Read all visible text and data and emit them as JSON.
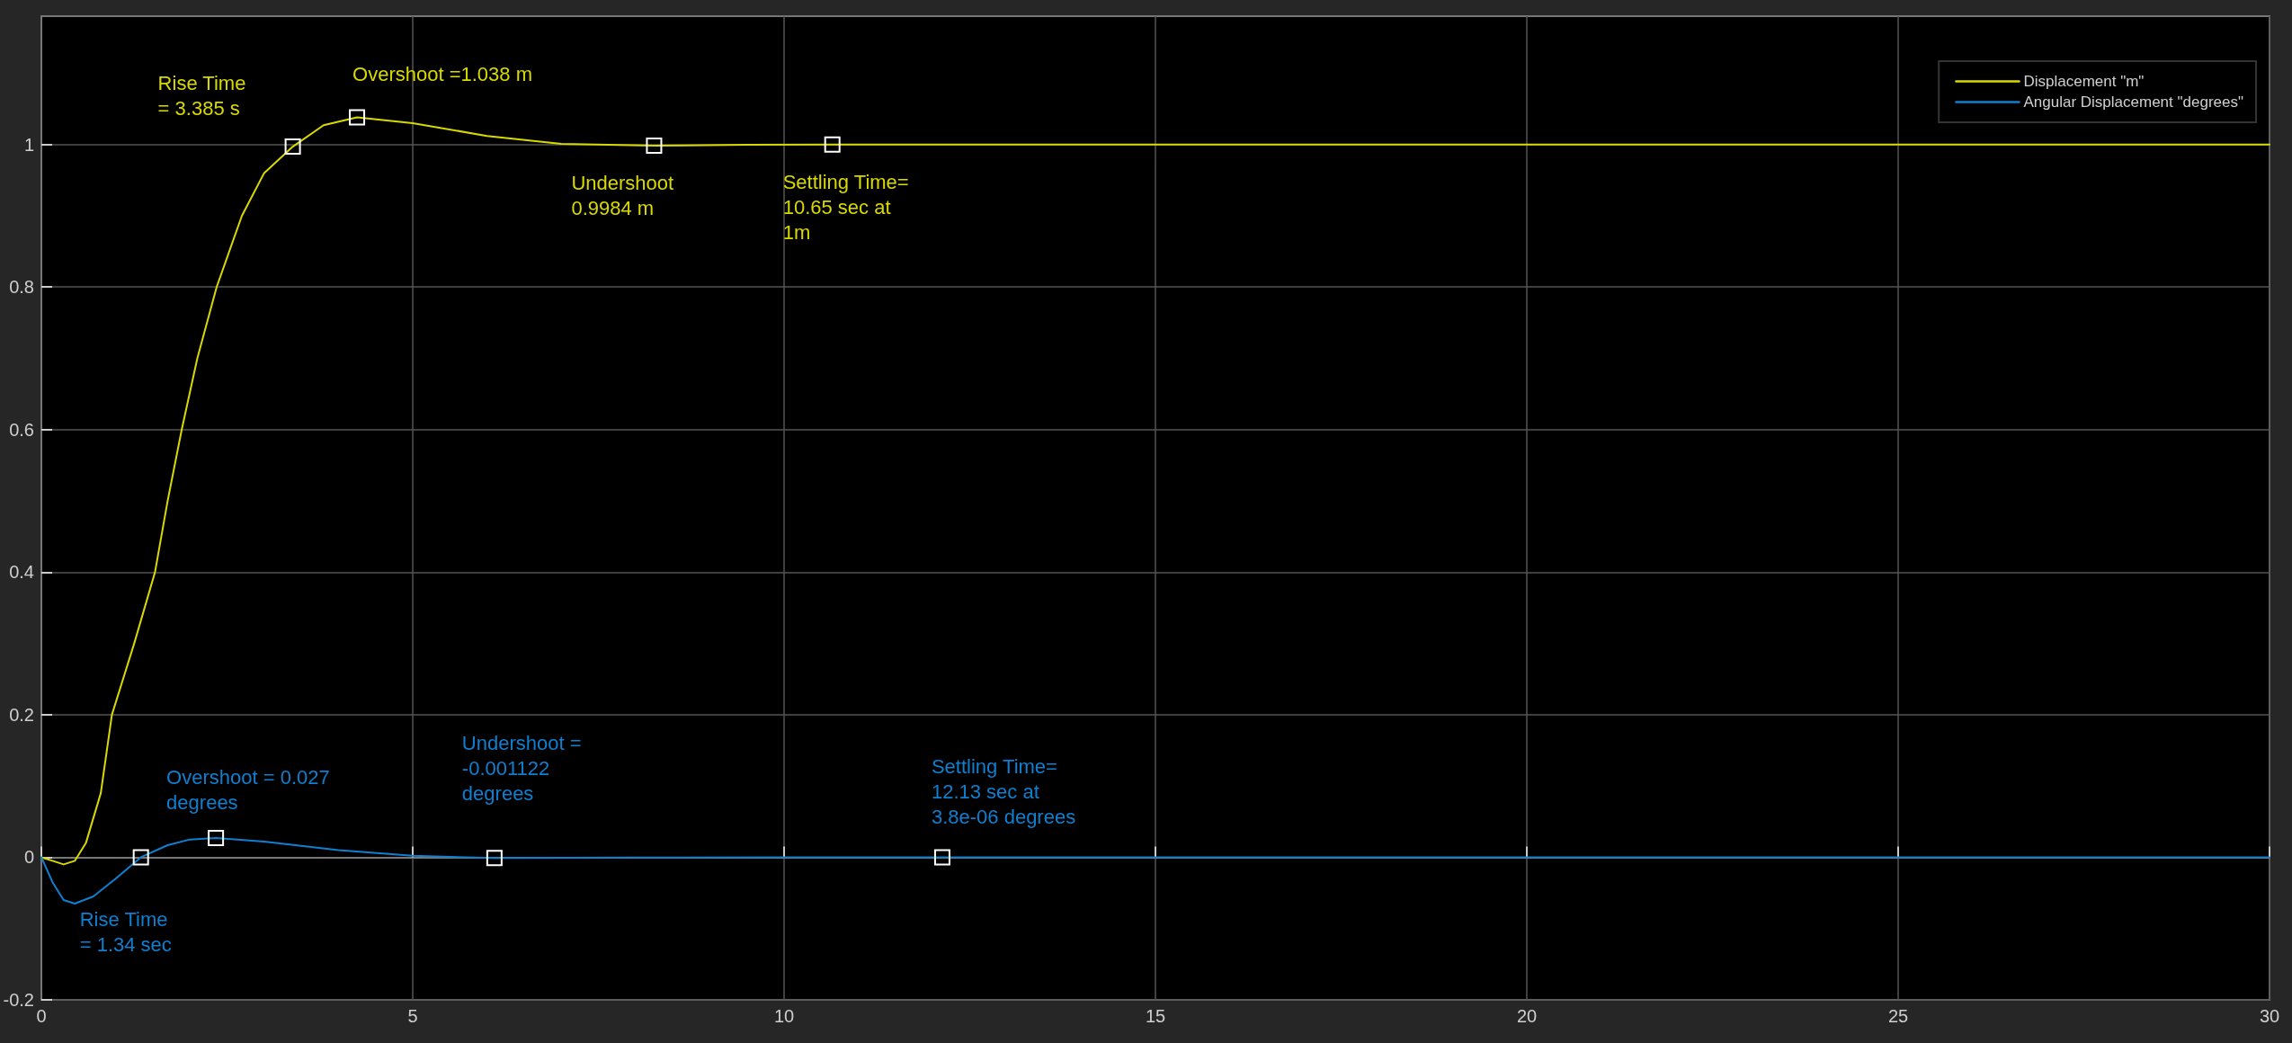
{
  "chart_data": {
    "type": "line",
    "x": [
      0,
      0.15,
      0.3,
      0.45,
      0.6,
      0.8,
      0.95,
      1.25,
      1.53,
      1.7,
      1.89,
      2.1,
      2.36,
      2.7,
      3.0,
      3.385,
      3.8,
      4.25,
      5,
      6,
      7,
      8.25,
      9.5,
      10.65,
      15,
      20,
      25,
      30
    ],
    "series": [
      {
        "name": "Displacement \"m\"",
        "color": "#d9d900",
        "values": [
          0,
          -0.005,
          -0.01,
          -0.005,
          0.02,
          0.09,
          0.2,
          0.3,
          0.4,
          0.5,
          0.6,
          0.7,
          0.8,
          0.9,
          0.96,
          0.997,
          1.027,
          1.038,
          1.03,
          1.012,
          1.001,
          0.9984,
          0.9995,
          1,
          1,
          1,
          1,
          1
        ]
      },
      {
        "name": "Angular Displacement \"degrees\"",
        "color": "#0f7fd0",
        "x": [
          0,
          0.15,
          0.3,
          0.45,
          0.7,
          1.0,
          1.34,
          1.7,
          2.0,
          2.35,
          3,
          4,
          5,
          6.1,
          8,
          10,
          12.13,
          30
        ],
        "values": [
          0,
          -0.035,
          -0.06,
          -0.065,
          -0.055,
          -0.03,
          0,
          0.017,
          0.025,
          0.027,
          0.022,
          0.01,
          0.002,
          -0.001122,
          -0.0005,
          0,
          3.8e-06,
          0
        ]
      }
    ],
    "xlim": [
      0,
      30
    ],
    "xticks": [
      0,
      5,
      10,
      15,
      20,
      25,
      30
    ],
    "ylim": [
      -0.2,
      1.18
    ],
    "yticks": [
      -0.2,
      0,
      0.2,
      0.4,
      0.6,
      0.8,
      1
    ],
    "grid": true,
    "legend": "top right",
    "marker": "none",
    "line_style": "solid",
    "annotations": [
      {
        "text": "Rise Time\n= 3.385 s",
        "x": 3.385,
        "y": 0.997
      },
      {
        "text": "Overshoot =1.038 m",
        "x": 4.25,
        "y": 1.038
      },
      {
        "text": "Undershoot\n0.9984 m",
        "x": 8.25,
        "y": 0.9984
      },
      {
        "text": "Settling Time=\n10.65 sec at\n1m",
        "x": 10.65,
        "y": 1
      },
      {
        "text": "Rise Time\n= 1.34 sec",
        "x": 1.34,
        "y": 0
      },
      {
        "text": "Overshoot = 0.027\ndegrees",
        "x": 2.35,
        "y": 0.027
      },
      {
        "text": "Undershoot =\n-0.001122\ndegrees",
        "x": 6.1,
        "y": -0.001122
      },
      {
        "text": "Settling Time=\n12.13 sec at\n3.8e-06 degrees",
        "x": 12.13,
        "y": 3.8e-06
      }
    ]
  }
}
